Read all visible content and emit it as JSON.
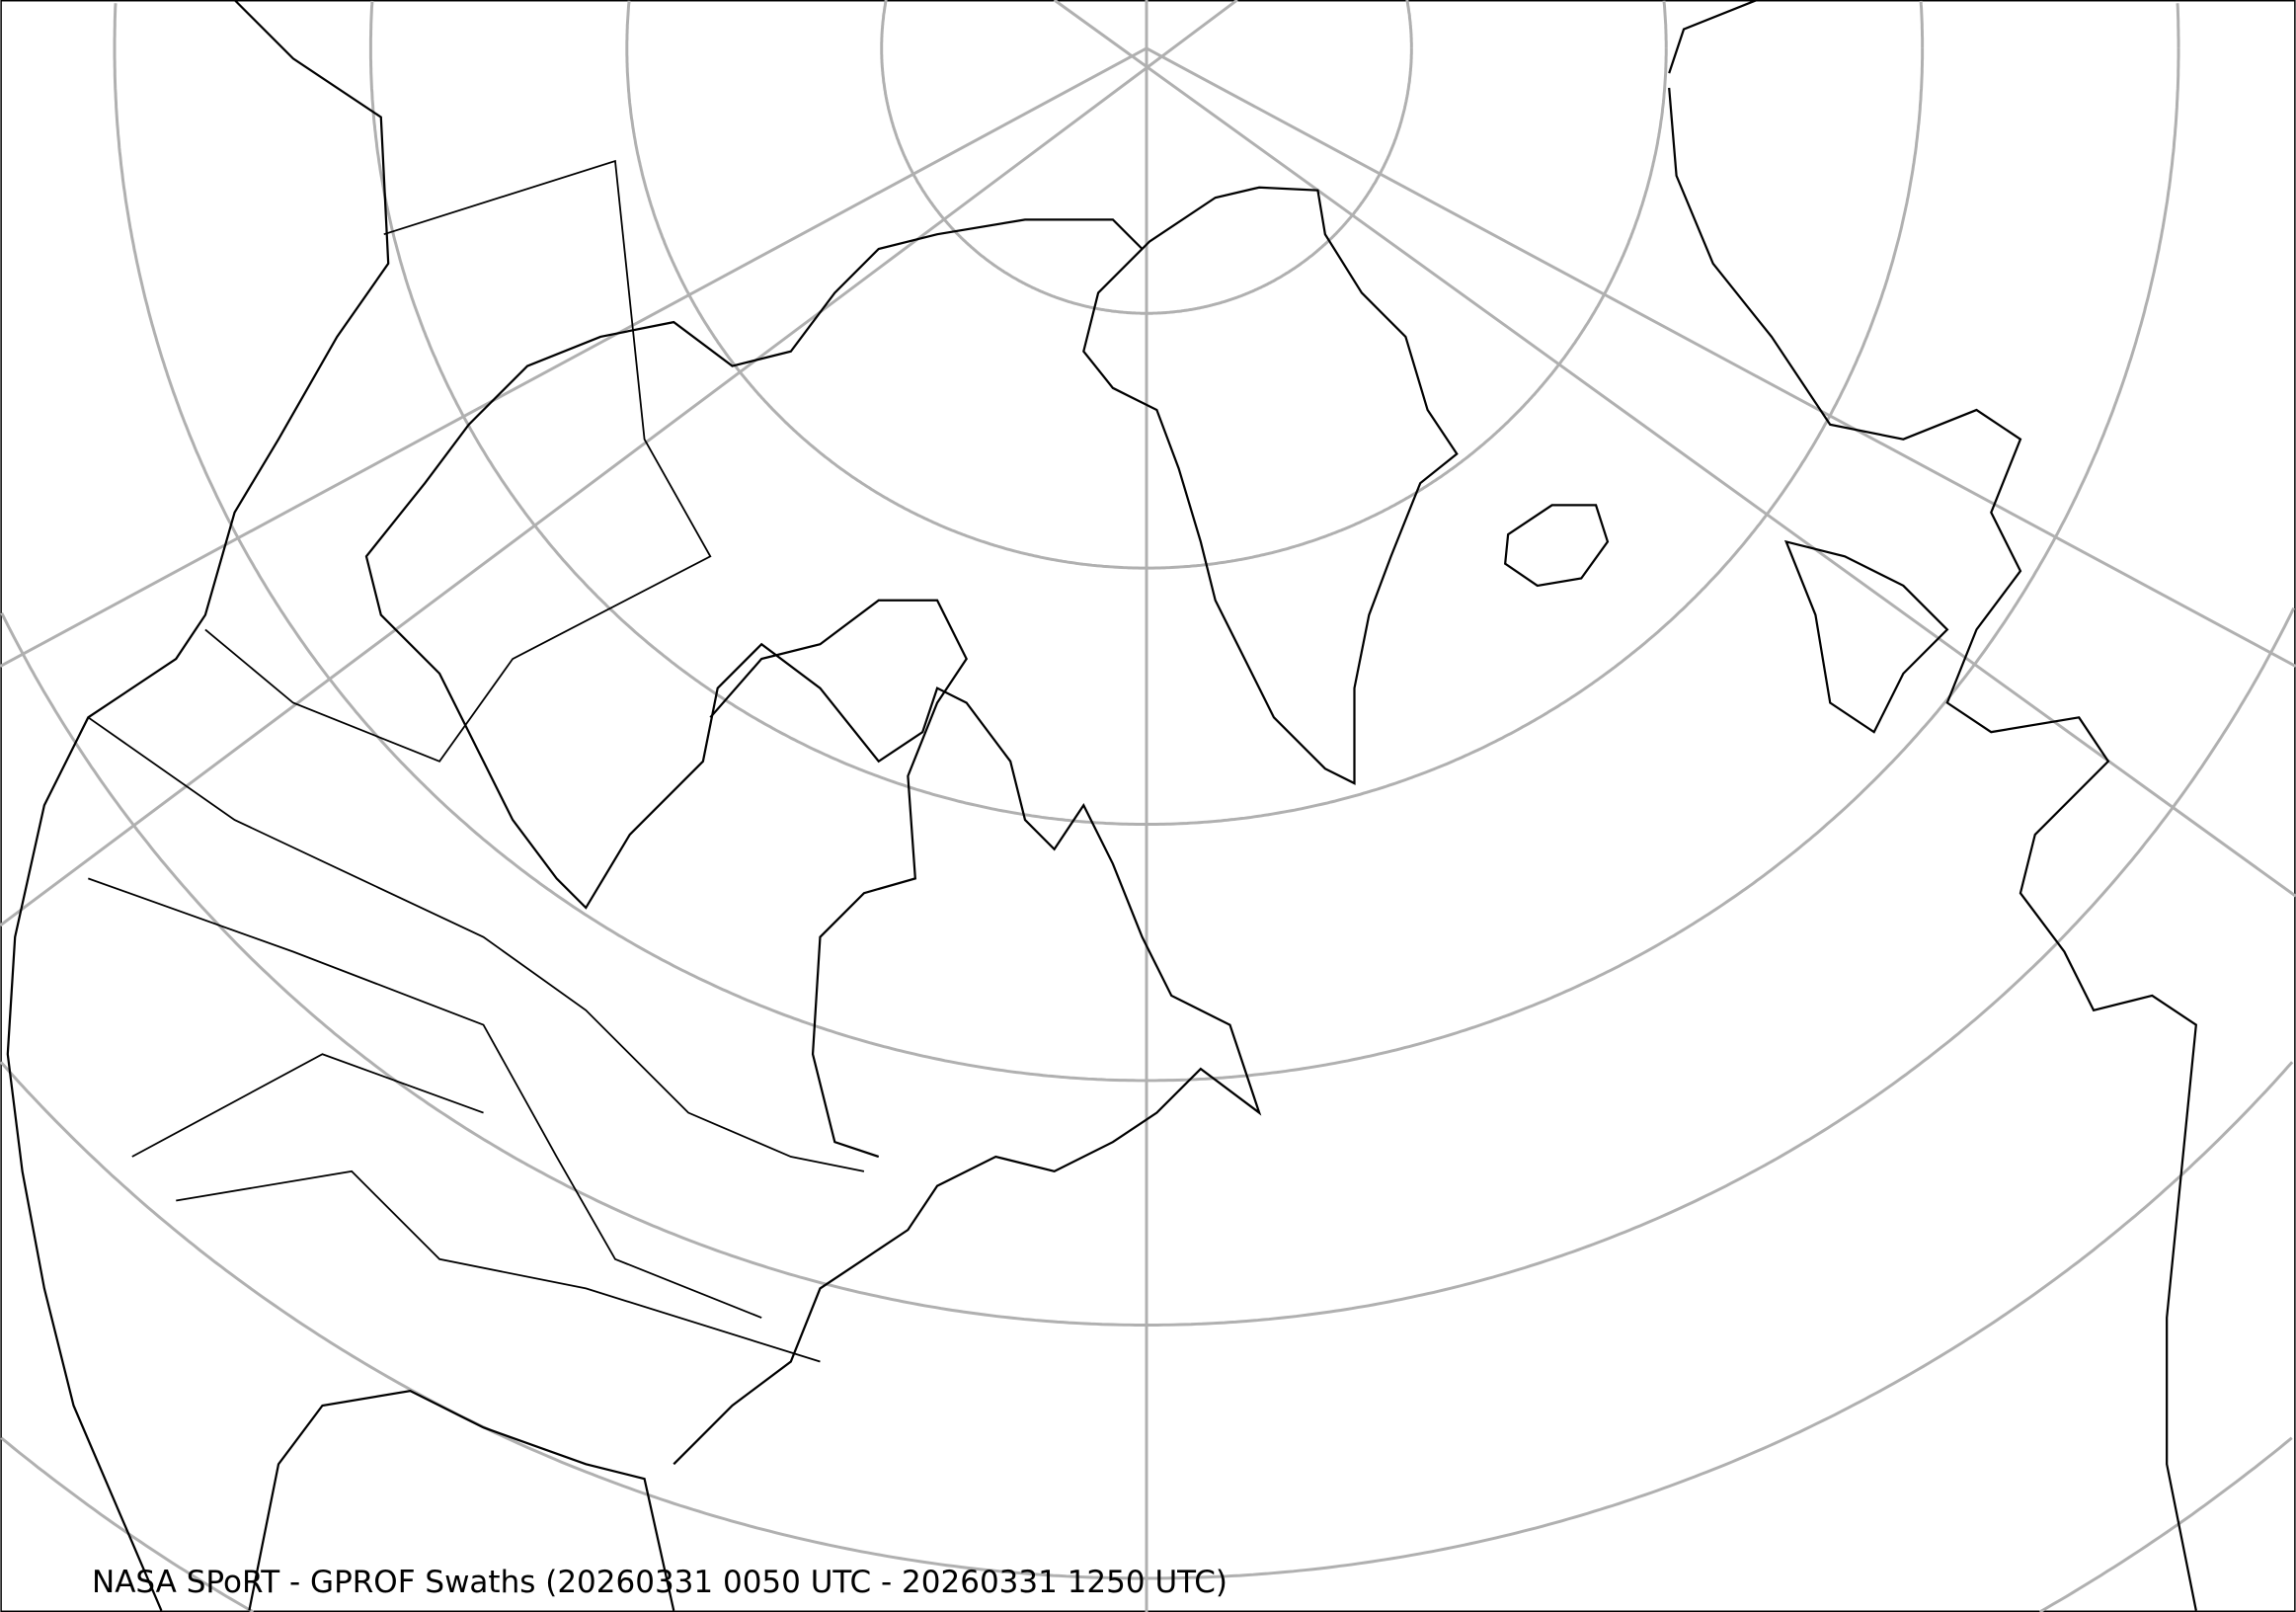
{
  "title": "NASA SPoRT - GPROF Swaths (20260331 0050 UTC - 20260331 1250 UTC)",
  "colors": {
    "coastline": "#000000",
    "graticule": "#b0b0b0",
    "background": "#ffffff"
  },
  "projection": "polar stereographic"
}
